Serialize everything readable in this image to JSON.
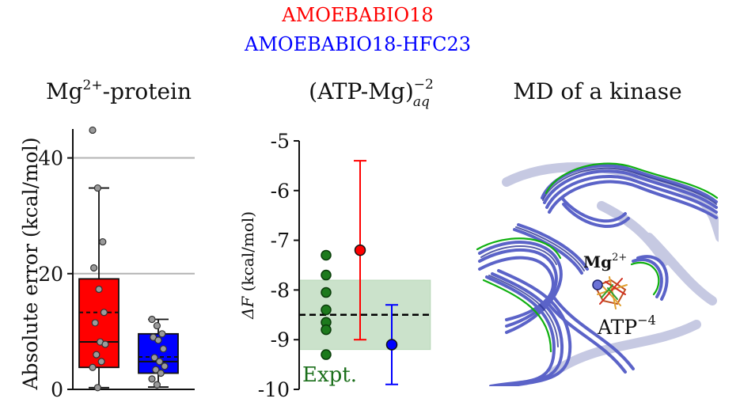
{
  "legend": {
    "entries": [
      {
        "label": "AMOEBABIO18",
        "color": "#ff0000"
      },
      {
        "label": "AMOEBABIO18-HFC23",
        "color": "#0000ff"
      }
    ]
  },
  "chart_data": [
    {
      "type": "box",
      "title_base": "Mg",
      "title_sup": "2+",
      "title_rest": "-protein",
      "ylabel": "Absolute error (kcal/mol)",
      "ylim": [
        0,
        45
      ],
      "yticks": [
        0,
        20,
        40
      ],
      "grid_lines": [
        20,
        40
      ],
      "series": [
        {
          "name": "AMOEBABIO18",
          "color": "#ff0000",
          "box": {
            "q1": 3.8,
            "median": 8.2,
            "mean": 13.3,
            "q3": 19.1,
            "whisker_low": 0.3,
            "whisker_high": 34.8
          },
          "points": [
            44.8,
            34.8,
            25.5,
            21.0,
            17.3,
            13.3,
            11.5,
            8.2,
            7.8,
            6.0,
            4.8,
            3.8,
            0.3
          ]
        },
        {
          "name": "AMOEBABIO18-HFC23",
          "color": "#0000ff",
          "box": {
            "q1": 2.8,
            "median": 4.8,
            "mean": 5.6,
            "q3": 9.6,
            "whisker_low": 0.4,
            "whisker_high": 12.1
          },
          "points": [
            12.1,
            11.0,
            9.6,
            9.0,
            8.5,
            7.0,
            5.5,
            4.8,
            4.0,
            3.4,
            2.8,
            1.8,
            0.8
          ]
        }
      ]
    },
    {
      "type": "errorbar",
      "title_base": "(ATP-Mg)",
      "title_sub": "aq",
      "title_sup": "−2",
      "ylabel_symbol": "ΔF",
      "ylabel_unit": " (kcal/mol)",
      "ylim": [
        -10,
        -5
      ],
      "yticks": [
        "-5",
        "-6",
        "-7",
        "-8",
        "-9",
        "-10"
      ],
      "yticks_values": [
        -5,
        -6,
        -7,
        -8,
        -9,
        -10
      ],
      "expt_label": "Expt.",
      "expt_mean": -8.5,
      "expt_band": [
        -9.2,
        -7.8
      ],
      "expt_points": [
        -7.3,
        -7.7,
        -8.05,
        -8.4,
        -8.65,
        -8.8,
        -9.3
      ],
      "series": [
        {
          "name": "AMOEBABIO18",
          "color": "#ff0000",
          "value": -7.2,
          "err_low": -9.0,
          "err_high": -5.4
        },
        {
          "name": "AMOEBABIO18-HFC23",
          "color": "#0000ff",
          "value": -9.1,
          "err_low": -9.9,
          "err_high": -8.3
        }
      ]
    }
  ],
  "structure_panel": {
    "title": "MD of a kinase",
    "ion_base": "Mg",
    "ion_sup": "2+",
    "ligand_base": "ATP",
    "ligand_sup": "−4"
  }
}
